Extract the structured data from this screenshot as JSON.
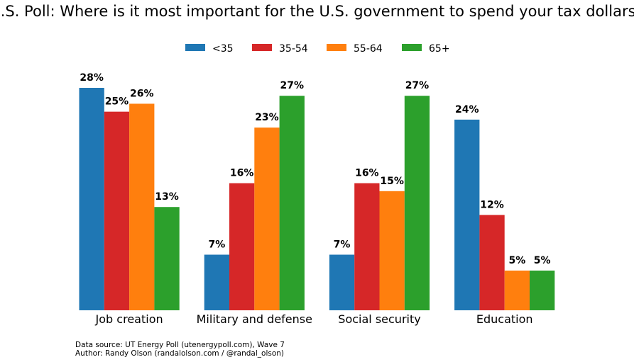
{
  "chart_data": {
    "type": "bar",
    "title": "U.S. Poll: Where is it most important for the U.S. government to spend your tax dollars?",
    "categories": [
      "Job creation",
      "Military and defense",
      "Social security",
      "Education"
    ],
    "series": [
      {
        "name": "<35",
        "color": "#1f77b4",
        "values": [
          28,
          7,
          7,
          24
        ],
        "labels": [
          "28%",
          "7%",
          "7%",
          "24%"
        ]
      },
      {
        "name": "35-54",
        "color": "#d62728",
        "values": [
          25,
          16,
          16,
          12
        ],
        "labels": [
          "25%",
          "16%",
          "16%",
          "12%"
        ]
      },
      {
        "name": "55-64",
        "color": "#ff7f0e",
        "values": [
          26,
          23,
          15,
          5
        ],
        "labels": [
          "26%",
          "23%",
          "15%",
          "5%"
        ]
      },
      {
        "name": "65+",
        "color": "#2ca02c",
        "values": [
          13,
          27,
          27,
          5
        ],
        "labels": [
          "13%",
          "27%",
          "27%",
          "5%"
        ]
      }
    ],
    "ylim": [
      0,
      28
    ],
    "legend_position": "top-center",
    "grid": false,
    "y_axis_visible": false
  },
  "footnote": {
    "line1": "Data source: UT Energy Poll (utenergypoll.com), Wave 7",
    "line2": "Author: Randy Olson (randalolson.com / @randal_olson)"
  }
}
